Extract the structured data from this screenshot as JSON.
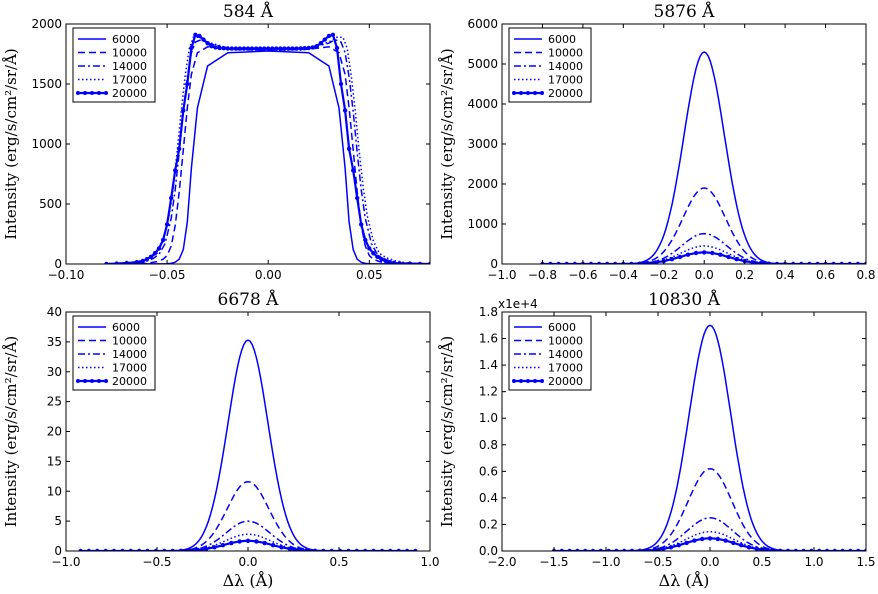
{
  "figure": {
    "line_color": "#0000ff",
    "legend_entries": [
      "6000",
      "10000",
      "14000",
      "17000",
      "20000"
    ],
    "shared_xlabel": "Δλ (Å)"
  },
  "chart_data": [
    {
      "type": "line",
      "title": "584 Å",
      "xlabel": "",
      "ylabel": "Intensity (erg/s/cm²/sr/Å)",
      "xlim": [
        -0.1,
        0.08
      ],
      "ylim": [
        0,
        2000
      ],
      "xticks": [
        -0.1,
        -0.05,
        0.0,
        0.05
      ],
      "xtick_labels": [
        "−0.10",
        "−0.05",
        "0.00",
        "0.05"
      ],
      "yticks": [
        0,
        500,
        1000,
        1500,
        2000
      ],
      "ytick_labels": [
        "0",
        "500",
        "1000",
        "1500",
        "2000"
      ],
      "legend": "top-left",
      "grid": false,
      "series": [
        {
          "name": "6000",
          "x": [
            -0.08,
            -0.05,
            -0.048,
            -0.046,
            -0.044,
            -0.042,
            -0.04,
            -0.038,
            -0.035,
            -0.03,
            -0.02,
            0.0,
            0.02,
            0.03,
            0.035,
            0.038,
            0.04,
            0.042,
            0.044,
            0.046,
            0.048,
            0.05,
            0.08
          ],
          "y": [
            0,
            2,
            5,
            15,
            40,
            120,
            350,
            800,
            1300,
            1650,
            1760,
            1775,
            1760,
            1650,
            1300,
            800,
            350,
            120,
            40,
            15,
            5,
            2,
            0
          ]
        },
        {
          "name": "10000",
          "x": [
            -0.08,
            -0.06,
            -0.055,
            -0.052,
            -0.05,
            -0.048,
            -0.046,
            -0.044,
            -0.042,
            -0.04,
            -0.038,
            -0.035,
            -0.03,
            -0.02,
            0.0,
            0.02,
            0.03,
            0.035,
            0.038,
            0.04,
            0.042,
            0.044,
            0.046,
            0.048,
            0.05,
            0.052,
            0.055,
            0.06,
            0.08
          ],
          "y": [
            0,
            5,
            20,
            40,
            70,
            150,
            320,
            600,
            950,
            1300,
            1580,
            1760,
            1810,
            1790,
            1780,
            1790,
            1810,
            1760,
            1580,
            1300,
            950,
            600,
            320,
            150,
            70,
            40,
            20,
            5,
            0
          ]
        },
        {
          "name": "14000",
          "x": [
            -0.08,
            -0.065,
            -0.06,
            -0.057,
            -0.054,
            -0.051,
            -0.048,
            -0.046,
            -0.044,
            -0.042,
            -0.04,
            -0.038,
            -0.036,
            -0.033,
            -0.03,
            -0.02,
            0.0,
            0.02,
            0.03,
            0.033,
            0.036,
            0.038,
            0.04,
            0.042,
            0.044,
            0.046,
            0.048,
            0.051,
            0.054,
            0.057,
            0.06,
            0.065,
            0.08
          ],
          "y": [
            0,
            8,
            25,
            45,
            80,
            170,
            380,
            620,
            930,
            1270,
            1560,
            1760,
            1850,
            1870,
            1840,
            1800,
            1790,
            1800,
            1840,
            1870,
            1850,
            1760,
            1560,
            1270,
            930,
            620,
            380,
            170,
            80,
            45,
            25,
            8,
            0
          ]
        },
        {
          "name": "17000",
          "x": [
            -0.08,
            -0.068,
            -0.062,
            -0.058,
            -0.055,
            -0.052,
            -0.049,
            -0.047,
            -0.045,
            -0.043,
            -0.041,
            -0.039,
            -0.037,
            -0.034,
            -0.03,
            -0.02,
            0.0,
            0.02,
            0.03,
            0.034,
            0.037,
            0.039,
            0.041,
            0.043,
            0.045,
            0.047,
            0.049,
            0.052,
            0.055,
            0.058,
            0.062,
            0.068,
            0.08
          ],
          "y": [
            0,
            10,
            30,
            55,
            90,
            190,
            400,
            630,
            940,
            1280,
            1580,
            1800,
            1890,
            1890,
            1850,
            1800,
            1795,
            1800,
            1850,
            1890,
            1890,
            1800,
            1580,
            1280,
            940,
            630,
            400,
            190,
            90,
            55,
            30,
            10,
            0
          ]
        },
        {
          "name": "20000",
          "markers": true,
          "x": [
            -0.08,
            -0.075,
            -0.07,
            -0.065,
            -0.062,
            -0.06,
            -0.058,
            -0.056,
            -0.054,
            -0.052,
            -0.05,
            -0.048,
            -0.046,
            -0.044,
            -0.042,
            -0.04,
            -0.038,
            -0.036,
            -0.034,
            -0.032,
            -0.03,
            -0.028,
            -0.026,
            -0.024,
            -0.022,
            -0.02,
            -0.018,
            -0.016,
            -0.014,
            -0.012,
            -0.01,
            -0.008,
            -0.006,
            -0.004,
            -0.002,
            0.0,
            0.002,
            0.004,
            0.006,
            0.008,
            0.01,
            0.012,
            0.014,
            0.016,
            0.018,
            0.02,
            0.022,
            0.024,
            0.026,
            0.028,
            0.03,
            0.032,
            0.034,
            0.036,
            0.038,
            0.04,
            0.042,
            0.044,
            0.046,
            0.048,
            0.05,
            0.052,
            0.054,
            0.056,
            0.058,
            0.06,
            0.062,
            0.065,
            0.07,
            0.075,
            0.08
          ],
          "y": [
            0,
            3,
            8,
            15,
            25,
            40,
            60,
            90,
            130,
            200,
            330,
            550,
            780,
            960,
            1280,
            1500,
            1800,
            1910,
            1900,
            1870,
            1840,
            1815,
            1805,
            1800,
            1798,
            1796,
            1795,
            1795,
            1795,
            1795,
            1795,
            1795,
            1795,
            1795,
            1795,
            1795,
            1795,
            1795,
            1795,
            1795,
            1795,
            1795,
            1795,
            1796,
            1798,
            1800,
            1805,
            1815,
            1840,
            1870,
            1900,
            1910,
            1800,
            1500,
            1280,
            960,
            780,
            550,
            330,
            200,
            130,
            90,
            60,
            40,
            25,
            15,
            8,
            5,
            3,
            1,
            0
          ]
        }
      ]
    },
    {
      "type": "line",
      "title": "5876 Å",
      "xlabel": "",
      "ylabel": "Intensity (erg/s/cm²/sr/Å)",
      "xlim": [
        -1.0,
        0.8
      ],
      "ylim": [
        0,
        6000
      ],
      "xticks": [
        -1.0,
        -0.8,
        -0.6,
        -0.4,
        -0.2,
        0.0,
        0.2,
        0.4,
        0.6,
        0.8
      ],
      "xtick_labels": [
        "−1.0",
        "−0.8",
        "−0.6",
        "−0.4",
        "−0.2",
        "0.0",
        "0.2",
        "0.4",
        "0.6",
        "0.8"
      ],
      "yticks": [
        0,
        1000,
        2000,
        3000,
        4000,
        5000,
        6000
      ],
      "ytick_labels": [
        "0",
        "1000",
        "2000",
        "3000",
        "4000",
        "5000",
        "6000"
      ],
      "legend": "top-left",
      "grid": false,
      "line_extent": [
        -0.8,
        0.8
      ],
      "series": [
        {
          "name": "6000",
          "peak": 5300,
          "center": 0.0,
          "sigma": 0.1
        },
        {
          "name": "10000",
          "peak": 1900,
          "center": 0.0,
          "sigma": 0.105
        },
        {
          "name": "14000",
          "peak": 760,
          "center": 0.0,
          "sigma": 0.11
        },
        {
          "name": "17000",
          "peak": 450,
          "center": 0.0,
          "sigma": 0.115
        },
        {
          "name": "20000",
          "peak": 290,
          "center": 0.0,
          "sigma": 0.12,
          "markers": true
        }
      ]
    },
    {
      "type": "line",
      "title": "6678 Å",
      "xlabel": "Δλ (Å)",
      "ylabel": "Intensity (erg/s/cm²/sr/Å)",
      "xlim": [
        -1.0,
        1.0
      ],
      "ylim": [
        0,
        40
      ],
      "xticks": [
        -1.0,
        -0.5,
        0.0,
        0.5,
        1.0
      ],
      "xtick_labels": [
        "−1.0",
        "−0.5",
        "0.0",
        "0.5",
        "1.0"
      ],
      "yticks": [
        0,
        5,
        10,
        15,
        20,
        25,
        30,
        35,
        40
      ],
      "ytick_labels": [
        "0",
        "5",
        "10",
        "15",
        "20",
        "25",
        "30",
        "35",
        "40"
      ],
      "legend": "top-left",
      "grid": false,
      "line_extent": [
        -0.92,
        0.92
      ],
      "series": [
        {
          "name": "6000",
          "peak": 35.3,
          "center": 0.0,
          "sigma": 0.11
        },
        {
          "name": "10000",
          "peak": 11.6,
          "center": 0.0,
          "sigma": 0.115
        },
        {
          "name": "14000",
          "peak": 5.0,
          "center": 0.0,
          "sigma": 0.12
        },
        {
          "name": "17000",
          "peak": 2.8,
          "center": 0.0,
          "sigma": 0.125
        },
        {
          "name": "20000",
          "peak": 1.7,
          "center": 0.0,
          "sigma": 0.13,
          "markers": true
        }
      ]
    },
    {
      "type": "line",
      "title": "10830 Å",
      "xlabel": "Δλ (Å)",
      "ylabel": "Intensity (erg/s/cm²/sr/Å)",
      "xlim": [
        -2.0,
        1.5
      ],
      "ylim": [
        0,
        1.8
      ],
      "y_offset_label": "x1e+4",
      "xticks": [
        -2.0,
        -1.5,
        -1.0,
        -0.5,
        0.0,
        0.5,
        1.0,
        1.5
      ],
      "xtick_labels": [
        "−2.0",
        "−1.5",
        "−1.0",
        "−0.5",
        "0.0",
        "0.5",
        "1.0",
        "1.5"
      ],
      "yticks": [
        0,
        0.2,
        0.4,
        0.6,
        0.8,
        1.0,
        1.2,
        1.4,
        1.6,
        1.8
      ],
      "ytick_labels": [
        "0.0",
        "0.2",
        "0.4",
        "0.6",
        "0.8",
        "1.0",
        "1.2",
        "1.4",
        "1.6",
        "1.8"
      ],
      "legend": "top-left",
      "grid": false,
      "line_extent": [
        -1.5,
        1.5
      ],
      "series": [
        {
          "name": "6000",
          "peak": 1.7,
          "center": 0.0,
          "sigma": 0.2
        },
        {
          "name": "10000",
          "peak": 0.62,
          "center": 0.0,
          "sigma": 0.21
        },
        {
          "name": "14000",
          "peak": 0.25,
          "center": 0.0,
          "sigma": 0.22
        },
        {
          "name": "17000",
          "peak": 0.145,
          "center": 0.0,
          "sigma": 0.23
        },
        {
          "name": "20000",
          "peak": 0.095,
          "center": 0.0,
          "sigma": 0.24,
          "markers": true
        }
      ]
    }
  ]
}
